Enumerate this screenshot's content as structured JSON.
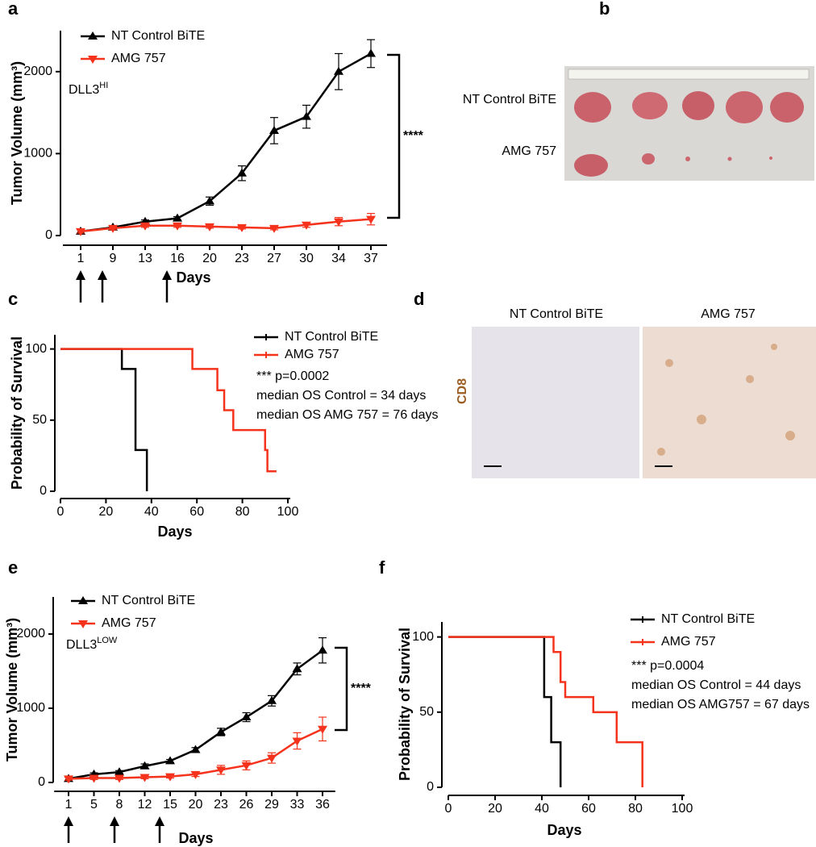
{
  "chart_data": [
    {
      "type": "line",
      "panel": "a",
      "ylabel": "Tumor Volume (mm³)",
      "xlabel": "Days",
      "categories": [
        "1",
        "9",
        "13",
        "16",
        "20",
        "23",
        "27",
        "30",
        "34",
        "37"
      ],
      "ylim": [
        0,
        2500
      ],
      "yticks": [
        0,
        1000,
        2000
      ],
      "annotation": {
        "text": "DLL3",
        "superscript": "HI"
      },
      "significance": "****",
      "series": [
        {
          "name": "NT Control BiTE",
          "color": "#000000",
          "marker": "triangle-up",
          "values": [
            50,
            100,
            170,
            210,
            420,
            760,
            1280,
            1450,
            2000,
            2220
          ],
          "errors": [
            20,
            20,
            20,
            20,
            50,
            90,
            160,
            140,
            220,
            170
          ]
        },
        {
          "name": "AMG 757",
          "color": "#f5331c",
          "marker": "triangle-down",
          "values": [
            50,
            90,
            120,
            120,
            110,
            100,
            90,
            130,
            170,
            200
          ],
          "errors": [
            20,
            20,
            20,
            20,
            20,
            20,
            20,
            30,
            50,
            70
          ]
        }
      ]
    },
    {
      "type": "step",
      "panel": "c",
      "ylabel": "Probability of Survival",
      "xlabel": "Days",
      "xlim": [
        0,
        100
      ],
      "xticks": [
        0,
        20,
        40,
        60,
        80,
        100
      ],
      "ylim": [
        0,
        110
      ],
      "yticks": [
        0,
        50,
        100
      ],
      "annotations": [
        "*** p=0.0002",
        "median OS Control = 34 days",
        "median OS AMG 757 = 76 days"
      ],
      "series": [
        {
          "name": "NT Control BiTE",
          "color": "#000000",
          "x": [
            0,
            27,
            27,
            33,
            33,
            38,
            38
          ],
          "values": [
            100,
            100,
            86,
            86,
            29,
            29,
            0
          ]
        },
        {
          "name": "AMG 757",
          "color": "#f5331c",
          "x": [
            0,
            58,
            58,
            69,
            69,
            72,
            72,
            76,
            76,
            90,
            90,
            91,
            91,
            95
          ],
          "values": [
            100,
            100,
            86,
            86,
            71,
            71,
            57,
            57,
            43,
            43,
            29,
            29,
            14,
            14
          ]
        }
      ]
    },
    {
      "type": "line",
      "panel": "e",
      "ylabel": "Tumor Volume (mm³)",
      "xlabel": "Days",
      "categories": [
        "1",
        "5",
        "8",
        "12",
        "15",
        "20",
        "23",
        "26",
        "29",
        "33",
        "36"
      ],
      "ylim": [
        0,
        2500
      ],
      "yticks": [
        0,
        1000,
        2000
      ],
      "annotation": {
        "text": "DLL3",
        "superscript": "LOW"
      },
      "significance": "****",
      "series": [
        {
          "name": "NT Control BiTE",
          "color": "#000000",
          "marker": "triangle-up",
          "values": [
            50,
            110,
            140,
            220,
            290,
            440,
            680,
            880,
            1100,
            1530,
            1780
          ],
          "errors": [
            20,
            20,
            20,
            30,
            20,
            30,
            50,
            60,
            70,
            80,
            170
          ]
        },
        {
          "name": "AMG 757",
          "color": "#f5331c",
          "marker": "triangle-down",
          "values": [
            50,
            60,
            60,
            70,
            80,
            110,
            170,
            230,
            330,
            560,
            720
          ],
          "errors": [
            20,
            20,
            20,
            20,
            20,
            30,
            60,
            60,
            70,
            110,
            160
          ]
        }
      ]
    },
    {
      "type": "step",
      "panel": "f",
      "ylabel": "Probability of Survival",
      "xlabel": "Days",
      "xlim": [
        0,
        100
      ],
      "xticks": [
        0,
        20,
        40,
        60,
        80,
        100
      ],
      "ylim": [
        0,
        110
      ],
      "yticks": [
        0,
        50,
        100
      ],
      "annotations": [
        "*** p=0.0004",
        "median OS Control = 44 days",
        "median OS AMG757 = 67 days"
      ],
      "series": [
        {
          "name": "NT Control BiTE",
          "color": "#000000",
          "x": [
            0,
            41,
            41,
            44,
            44,
            48,
            48
          ],
          "values": [
            100,
            100,
            60,
            60,
            30,
            30,
            0
          ]
        },
        {
          "name": "AMG 757",
          "color": "#f5331c",
          "x": [
            0,
            45,
            45,
            48,
            48,
            50,
            50,
            62,
            62,
            72,
            72,
            83,
            83
          ],
          "values": [
            100,
            100,
            90,
            90,
            70,
            70,
            60,
            60,
            50,
            50,
            30,
            30,
            0
          ]
        }
      ]
    }
  ],
  "photos": [
    {
      "panel": "b",
      "labels": [
        "NT Control BiTE",
        "AMG 757"
      ]
    },
    {
      "panel": "d",
      "titles": [
        "NT Control BiTE",
        "AMG 757"
      ],
      "stain": "CD8"
    }
  ]
}
